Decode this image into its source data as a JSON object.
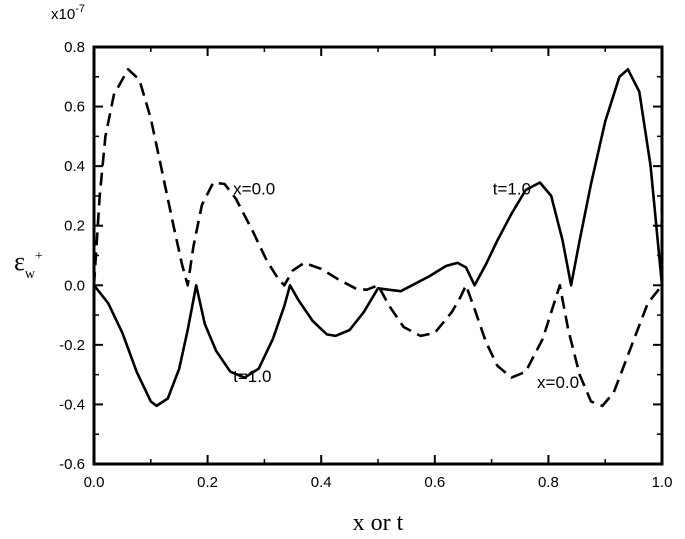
{
  "chart_data": {
    "type": "line",
    "xlabel": "x or t",
    "ylabel": {
      "base": "ε",
      "sub": "w",
      "sup": "+"
    },
    "scale_label": "x10",
    "scale_exponent": "-7",
    "xlim": [
      0.0,
      1.0
    ],
    "ylim": [
      -0.6,
      0.8
    ],
    "x_ticks": [
      "0.0",
      "0.2",
      "0.4",
      "0.6",
      "0.8",
      "1.0"
    ],
    "y_ticks": [
      "-0.6",
      "-0.4",
      "-0.2",
      "0.0",
      "0.2",
      "0.4",
      "0.6",
      "0.8"
    ],
    "grid": false,
    "series": [
      {
        "style": "dashed",
        "color": "#000000",
        "points": [
          [
            0.0,
            0.0
          ],
          [
            0.01,
            0.3
          ],
          [
            0.02,
            0.5
          ],
          [
            0.035,
            0.64
          ],
          [
            0.06,
            0.725
          ],
          [
            0.08,
            0.69
          ],
          [
            0.1,
            0.56
          ],
          [
            0.12,
            0.38
          ],
          [
            0.14,
            0.2
          ],
          [
            0.155,
            0.07
          ],
          [
            0.165,
            0.0
          ],
          [
            0.175,
            0.13
          ],
          [
            0.19,
            0.27
          ],
          [
            0.21,
            0.345
          ],
          [
            0.23,
            0.34
          ],
          [
            0.25,
            0.29
          ],
          [
            0.28,
            0.18
          ],
          [
            0.305,
            0.08
          ],
          [
            0.325,
            0.02
          ],
          [
            0.335,
            0.0
          ],
          [
            0.35,
            0.05
          ],
          [
            0.37,
            0.075
          ],
          [
            0.4,
            0.055
          ],
          [
            0.43,
            0.02
          ],
          [
            0.46,
            -0.01
          ],
          [
            0.48,
            -0.015
          ],
          [
            0.5,
            0.0
          ],
          [
            0.52,
            -0.07
          ],
          [
            0.545,
            -0.14
          ],
          [
            0.575,
            -0.17
          ],
          [
            0.6,
            -0.16
          ],
          [
            0.63,
            -0.09
          ],
          [
            0.645,
            -0.04
          ],
          [
            0.655,
            0.0
          ],
          [
            0.67,
            -0.08
          ],
          [
            0.69,
            -0.19
          ],
          [
            0.71,
            -0.27
          ],
          [
            0.735,
            -0.31
          ],
          [
            0.76,
            -0.29
          ],
          [
            0.79,
            -0.18
          ],
          [
            0.81,
            -0.06
          ],
          [
            0.82,
            0.0
          ],
          [
            0.835,
            -0.15
          ],
          [
            0.855,
            -0.3
          ],
          [
            0.875,
            -0.39
          ],
          [
            0.895,
            -0.405
          ],
          [
            0.915,
            -0.36
          ],
          [
            0.935,
            -0.26
          ],
          [
            0.955,
            -0.16
          ],
          [
            0.975,
            -0.06
          ],
          [
            1.0,
            0.0
          ]
        ]
      },
      {
        "style": "solid",
        "color": "#000000",
        "points": [
          [
            0.0,
            0.0
          ],
          [
            0.025,
            -0.06
          ],
          [
            0.05,
            -0.16
          ],
          [
            0.075,
            -0.29
          ],
          [
            0.1,
            -0.39
          ],
          [
            0.11,
            -0.405
          ],
          [
            0.13,
            -0.38
          ],
          [
            0.15,
            -0.28
          ],
          [
            0.165,
            -0.15
          ],
          [
            0.18,
            0.0
          ],
          [
            0.195,
            -0.13
          ],
          [
            0.215,
            -0.22
          ],
          [
            0.24,
            -0.29
          ],
          [
            0.265,
            -0.31
          ],
          [
            0.29,
            -0.28
          ],
          [
            0.315,
            -0.18
          ],
          [
            0.335,
            -0.07
          ],
          [
            0.345,
            0.0
          ],
          [
            0.36,
            -0.05
          ],
          [
            0.385,
            -0.12
          ],
          [
            0.41,
            -0.165
          ],
          [
            0.425,
            -0.17
          ],
          [
            0.45,
            -0.15
          ],
          [
            0.475,
            -0.09
          ],
          [
            0.5,
            -0.01
          ],
          [
            0.52,
            -0.015
          ],
          [
            0.54,
            -0.02
          ],
          [
            0.56,
            0.0
          ],
          [
            0.59,
            0.03
          ],
          [
            0.62,
            0.065
          ],
          [
            0.64,
            0.075
          ],
          [
            0.655,
            0.06
          ],
          [
            0.67,
            0.0
          ],
          [
            0.69,
            0.07
          ],
          [
            0.71,
            0.15
          ],
          [
            0.735,
            0.24
          ],
          [
            0.76,
            0.32
          ],
          [
            0.785,
            0.345
          ],
          [
            0.805,
            0.3
          ],
          [
            0.825,
            0.15
          ],
          [
            0.84,
            0.0
          ],
          [
            0.855,
            0.15
          ],
          [
            0.875,
            0.34
          ],
          [
            0.9,
            0.55
          ],
          [
            0.925,
            0.7
          ],
          [
            0.94,
            0.725
          ],
          [
            0.96,
            0.65
          ],
          [
            0.98,
            0.4
          ],
          [
            0.99,
            0.2
          ],
          [
            1.0,
            0.0
          ]
        ]
      }
    ],
    "annotations": [
      {
        "text": "x=0.0",
        "x": 0.245,
        "y": 0.305
      },
      {
        "text": "t=1.0",
        "x": 0.702,
        "y": 0.305
      },
      {
        "text": "t=1.0",
        "x": 0.245,
        "y": -0.325
      },
      {
        "text": "x=0.0",
        "x": 0.78,
        "y": -0.345
      }
    ]
  }
}
